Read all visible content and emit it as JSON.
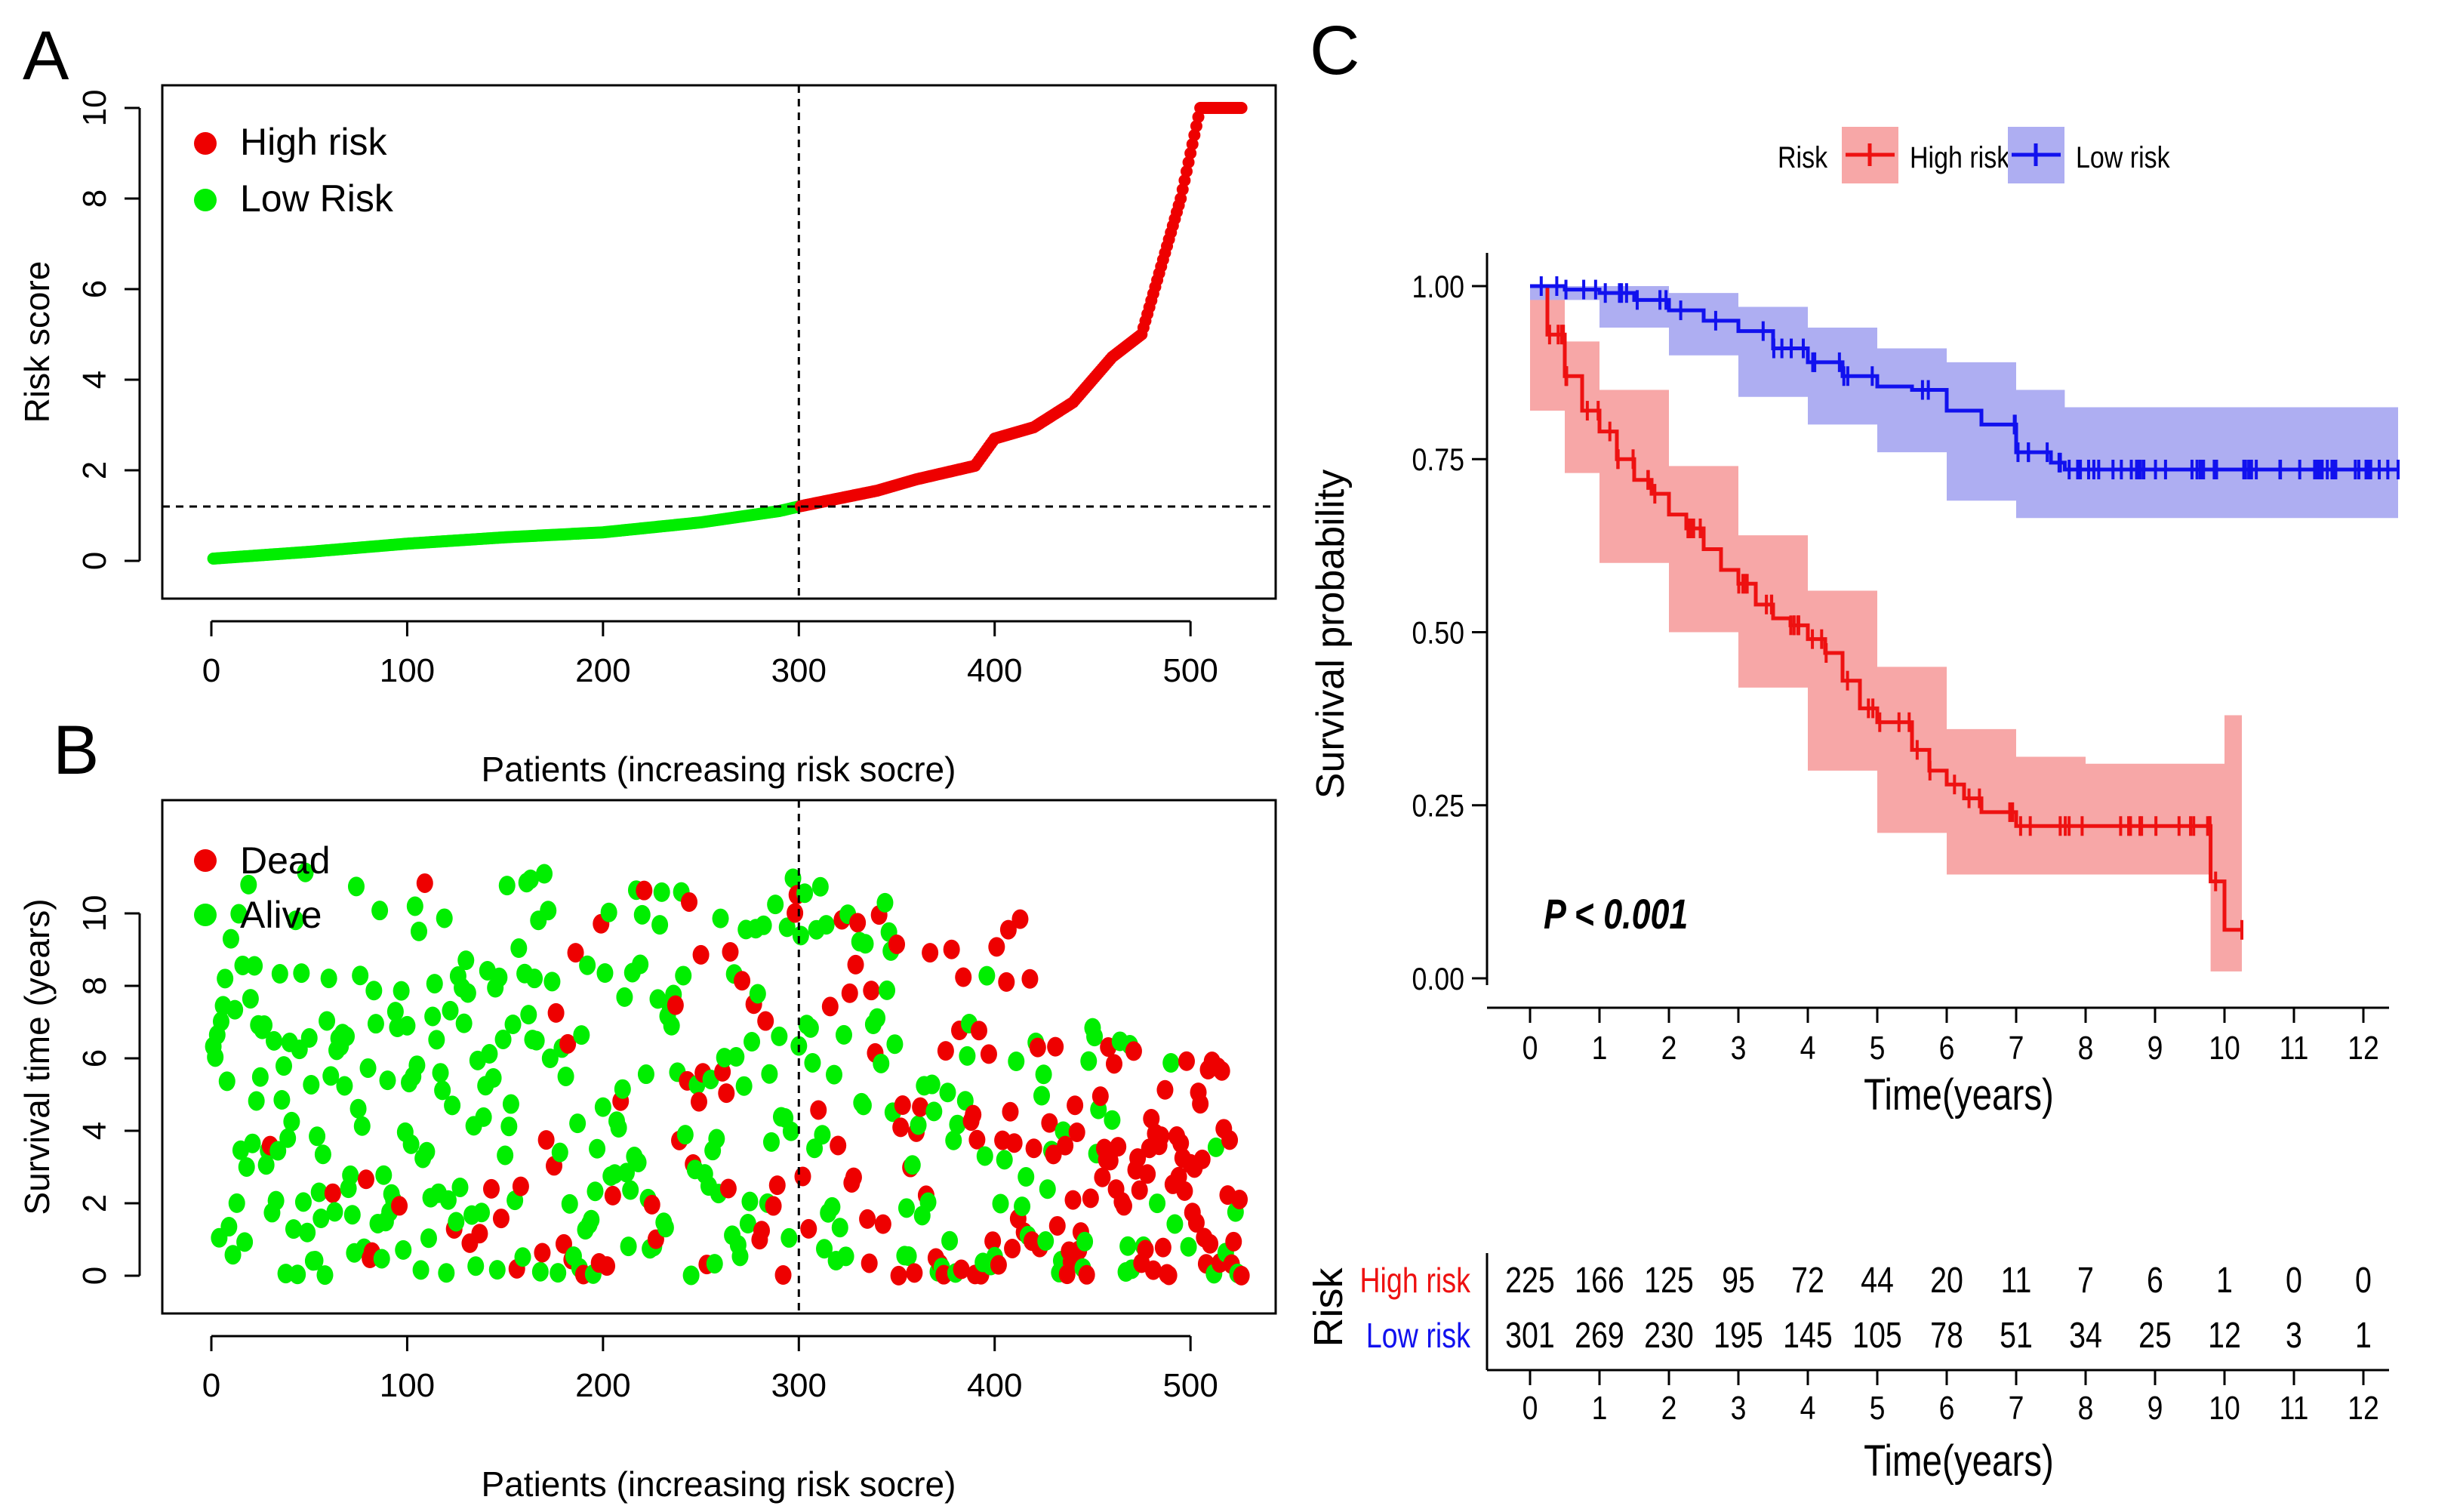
{
  "colors": {
    "high": "#ee0000",
    "low": "#00ee00",
    "dead": "#ee0000",
    "alive": "#00ee00",
    "km_high": "#ee1111",
    "km_low": "#1111ee",
    "km_high_band": "#f7a7a7",
    "km_low_band": "#aeaef2",
    "frame": "#000000"
  },
  "panels": {
    "a": "A",
    "b": "B",
    "c": "C"
  },
  "chart_data": [
    {
      "id": "risk-score-curve",
      "type": "scatter",
      "xlabel": "Patients (increasing risk socre)",
      "ylabel": "Risk score",
      "xlim": [
        0,
        530
      ],
      "ylim": [
        0,
        10
      ],
      "xticks": [
        0,
        100,
        200,
        300,
        400,
        500
      ],
      "yticks": [
        0,
        2,
        4,
        6,
        8,
        10
      ],
      "cutoff_patient": 300,
      "cutoff_score": 1.2,
      "n_patients": 526,
      "score_curve": [
        [
          1,
          0.05
        ],
        [
          50,
          0.2
        ],
        [
          100,
          0.38
        ],
        [
          150,
          0.52
        ],
        [
          200,
          0.63
        ],
        [
          250,
          0.85
        ],
        [
          290,
          1.1
        ],
        [
          300,
          1.2
        ],
        [
          340,
          1.55
        ],
        [
          360,
          1.8
        ],
        [
          390,
          2.1
        ],
        [
          400,
          2.7
        ],
        [
          420,
          2.95
        ],
        [
          440,
          3.5
        ],
        [
          460,
          4.5
        ],
        [
          475,
          5.0
        ],
        [
          485,
          6.5
        ],
        [
          495,
          8.0
        ],
        [
          505,
          10.0
        ],
        [
          526,
          10.0
        ]
      ],
      "legend": [
        {
          "label": "High risk",
          "color": "#ee0000"
        },
        {
          "label": "Low Risk",
          "color": "#00ee00"
        }
      ]
    },
    {
      "id": "survival-status-scatter",
      "type": "scatter",
      "xlabel": "Patients (increasing risk socre)",
      "ylabel": "Survival time (years)",
      "xlim": [
        0,
        530
      ],
      "ylim": [
        0,
        12.5
      ],
      "xticks": [
        0,
        100,
        200,
        300,
        400,
        500
      ],
      "yticks": [
        0,
        2,
        4,
        6,
        8,
        10
      ],
      "cutoff_patient": 300,
      "n_patients": 526,
      "legend": [
        {
          "label": "Dead",
          "color": "#ee0000"
        },
        {
          "label": "Alive",
          "color": "#00ee00"
        }
      ]
    },
    {
      "id": "kaplan-meier",
      "type": "line",
      "xlabel": "Time(years)",
      "ylabel": "Survival probability",
      "xlim": [
        0,
        12.5
      ],
      "ylim": [
        0,
        1
      ],
      "xticks": [
        0,
        1,
        2,
        3,
        4,
        5,
        6,
        7,
        8,
        9,
        10,
        11,
        12
      ],
      "ytick_labels": [
        "0.00",
        "0.25",
        "0.50",
        "0.75",
        "1.00"
      ],
      "legend_title": "Risk",
      "pvalue": "P  <  0.001",
      "series": [
        {
          "name": "High risk",
          "color": "#ee1111",
          "points": [
            [
              0,
              1.0
            ],
            [
              0.25,
              0.93
            ],
            [
              0.5,
              0.87
            ],
            [
              0.75,
              0.82
            ],
            [
              1.0,
              0.79
            ],
            [
              1.25,
              0.75
            ],
            [
              1.5,
              0.72
            ],
            [
              1.75,
              0.7
            ],
            [
              2.0,
              0.67
            ],
            [
              2.25,
              0.65
            ],
            [
              2.5,
              0.62
            ],
            [
              2.75,
              0.59
            ],
            [
              3.0,
              0.57
            ],
            [
              3.25,
              0.54
            ],
            [
              3.5,
              0.52
            ],
            [
              3.75,
              0.51
            ],
            [
              4.0,
              0.49
            ],
            [
              4.25,
              0.47
            ],
            [
              4.5,
              0.43
            ],
            [
              4.75,
              0.39
            ],
            [
              5.0,
              0.37
            ],
            [
              5.25,
              0.37
            ],
            [
              5.5,
              0.33
            ],
            [
              5.75,
              0.3
            ],
            [
              6.0,
              0.28
            ],
            [
              6.25,
              0.26
            ],
            [
              6.5,
              0.24
            ],
            [
              6.75,
              0.24
            ],
            [
              7.0,
              0.22
            ],
            [
              7.5,
              0.22
            ],
            [
              8.0,
              0.22
            ],
            [
              9.0,
              0.22
            ],
            [
              9.8,
              0.22
            ],
            [
              9.8,
              0.14
            ],
            [
              10.0,
              0.14
            ],
            [
              10.0,
              0.07
            ],
            [
              10.25,
              0.07
            ]
          ],
          "band_upper": [
            [
              0,
              1.0
            ],
            [
              0.5,
              0.92
            ],
            [
              1,
              0.85
            ],
            [
              2,
              0.74
            ],
            [
              3,
              0.64
            ],
            [
              4,
              0.56
            ],
            [
              5,
              0.45
            ],
            [
              6,
              0.36
            ],
            [
              7,
              0.32
            ],
            [
              8,
              0.31
            ],
            [
              9,
              0.31
            ],
            [
              9.8,
              0.31
            ],
            [
              10.0,
              0.38
            ],
            [
              10.25,
              0.38
            ]
          ],
          "band_lower": [
            [
              0,
              1.0
            ],
            [
              0.5,
              0.82
            ],
            [
              1,
              0.73
            ],
            [
              2,
              0.6
            ],
            [
              3,
              0.5
            ],
            [
              4,
              0.42
            ],
            [
              5,
              0.3
            ],
            [
              6,
              0.21
            ],
            [
              7,
              0.15
            ],
            [
              8,
              0.15
            ],
            [
              9,
              0.15
            ],
            [
              9.8,
              0.15
            ],
            [
              9.8,
              0.06
            ],
            [
              10.0,
              0.01
            ],
            [
              10.25,
              0.01
            ]
          ]
        },
        {
          "name": "Low risk",
          "color": "#1111ee",
          "points": [
            [
              0,
              1.0
            ],
            [
              0.5,
              0.995
            ],
            [
              1,
              0.99
            ],
            [
              1.5,
              0.98
            ],
            [
              2,
              0.965
            ],
            [
              2.5,
              0.95
            ],
            [
              3,
              0.935
            ],
            [
              3.5,
              0.91
            ],
            [
              4,
              0.89
            ],
            [
              4.5,
              0.87
            ],
            [
              5,
              0.855
            ],
            [
              5.5,
              0.85
            ],
            [
              6,
              0.82
            ],
            [
              6.5,
              0.8
            ],
            [
              7,
              0.76
            ],
            [
              7.5,
              0.745
            ],
            [
              7.7,
              0.735
            ],
            [
              8,
              0.735
            ],
            [
              10,
              0.735
            ],
            [
              12.5,
              0.735
            ]
          ],
          "band_upper": [
            [
              0,
              1.0
            ],
            [
              1,
              1.0
            ],
            [
              2,
              0.99
            ],
            [
              3,
              0.97
            ],
            [
              4,
              0.94
            ],
            [
              5,
              0.91
            ],
            [
              6,
              0.89
            ],
            [
              7,
              0.85
            ],
            [
              7.7,
              0.825
            ],
            [
              12.5,
              0.825
            ]
          ],
          "band_lower": [
            [
              0,
              1.0
            ],
            [
              1,
              0.98
            ],
            [
              2,
              0.94
            ],
            [
              3,
              0.9
            ],
            [
              4,
              0.84
            ],
            [
              5,
              0.8
            ],
            [
              6,
              0.76
            ],
            [
              7,
              0.69
            ],
            [
              7.7,
              0.665
            ],
            [
              12.5,
              0.665
            ]
          ]
        }
      ]
    },
    {
      "id": "risk-table",
      "type": "table",
      "title": "Risk",
      "xlabel": "Time(years)",
      "columns": [
        0,
        1,
        2,
        3,
        4,
        5,
        6,
        7,
        8,
        9,
        10,
        11,
        12
      ],
      "rows": [
        {
          "name": "High risk",
          "color": "#ee1111",
          "values": [
            225,
            166,
            125,
            95,
            72,
            44,
            20,
            11,
            7,
            6,
            1,
            0,
            0
          ]
        },
        {
          "name": "Low risk",
          "color": "#1111ee",
          "values": [
            301,
            269,
            230,
            195,
            145,
            105,
            78,
            51,
            34,
            25,
            12,
            3,
            1
          ]
        }
      ]
    }
  ]
}
